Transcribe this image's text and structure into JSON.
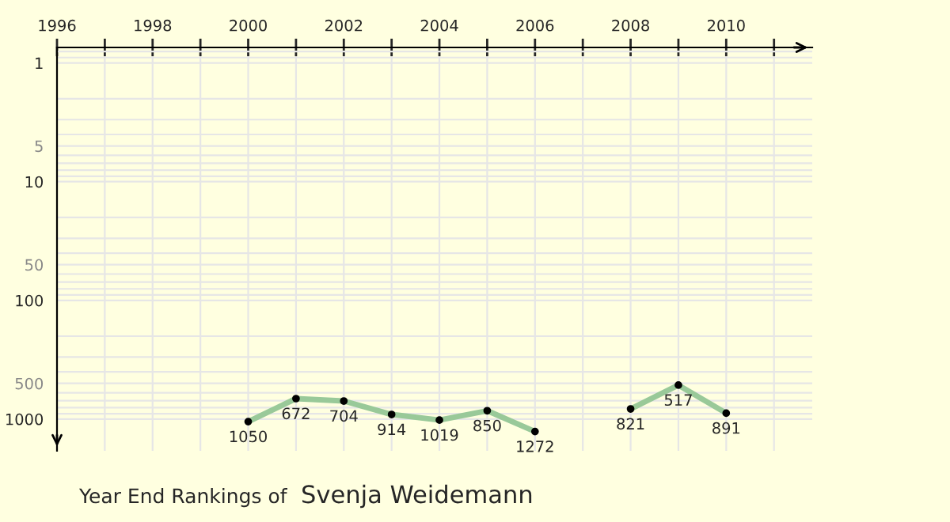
{
  "chart_data": {
    "type": "line",
    "title": "Year End Rankings of",
    "subtitle": "Svenja Weidemann",
    "x": [
      2000,
      2001,
      2002,
      2003,
      2004,
      2005,
      2006,
      2007,
      2008,
      2009,
      2010
    ],
    "series": [
      {
        "color": "#99c999",
        "values": [
          1050,
          672,
          704,
          914,
          1019,
          850,
          1272,
          null,
          821,
          517,
          891
        ]
      }
    ],
    "xlim": [
      1996,
      2011.8
    ],
    "xticks": [
      1996,
      {
        "value": 1997,
        "label": null
      },
      1998,
      {
        "value": 1999,
        "label": null
      },
      2000,
      {
        "value": 2001,
        "label": null
      },
      2002,
      {
        "value": 2003,
        "label": null
      },
      2004,
      {
        "value": 2005,
        "label": null
      },
      2006,
      {
        "value": 2007,
        "label": null
      },
      2008,
      {
        "value": 2009,
        "label": null
      },
      2010,
      {
        "value": 2011,
        "label": null
      }
    ],
    "ylim": [
      1850,
      0.74
    ],
    "yticks": [
      1,
      5,
      10,
      50,
      100,
      500,
      1000
    ],
    "log": true,
    "grid": true,
    "marker": "circle",
    "data_labels": true
  }
}
